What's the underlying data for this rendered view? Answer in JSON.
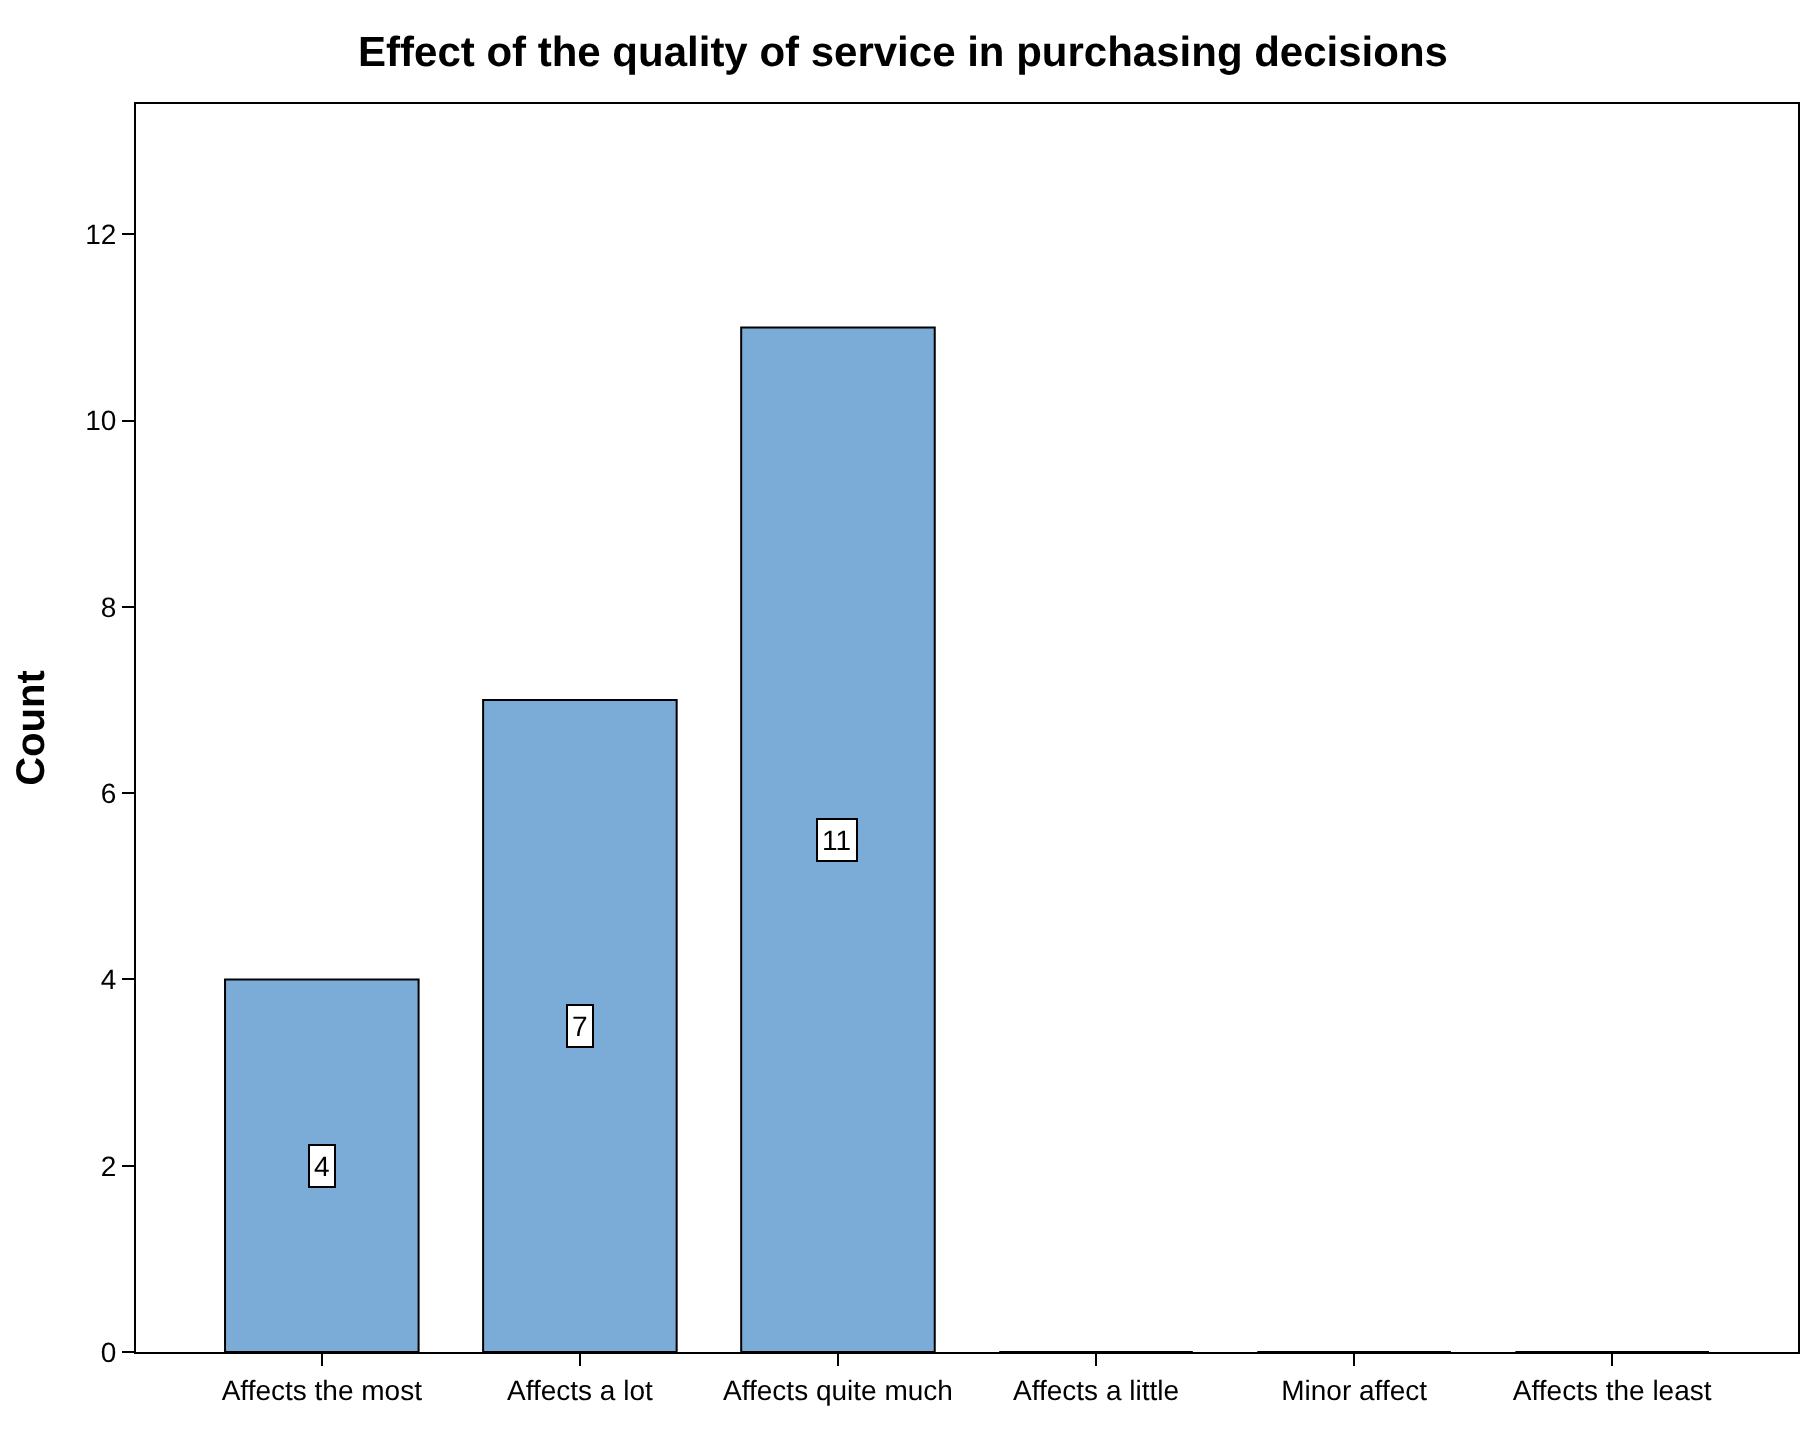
{
  "chart_data": {
    "type": "bar",
    "title": "Effect of the quality of service in purchasing decisions",
    "ylabel": "Count",
    "categories": [
      "Affects the most",
      "Affects a lot",
      "Affects quite much",
      "Affects a little",
      "Minor affect",
      "Affects the least"
    ],
    "values": [
      4,
      7,
      11,
      0,
      0,
      0
    ],
    "value_labels": [
      "4",
      "7",
      "11",
      null,
      null,
      null
    ],
    "color": "#7bacd8",
    "ylim": [
      0,
      13.4
    ],
    "yticks": [
      0,
      2,
      4,
      6,
      8,
      10,
      12
    ]
  }
}
